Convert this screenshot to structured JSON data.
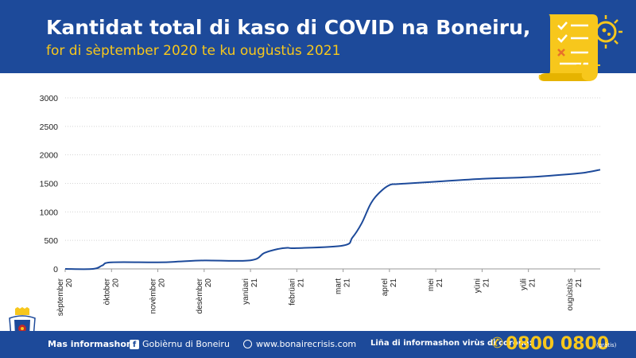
{
  "header": {
    "title": "Kantidat total di kaso di COVID na Boneiru,",
    "subtitle": "for di sèptember 2020 te ku ougùstùs 2021"
  },
  "footer": {
    "more_info": "Mas informashon:",
    "facebook": "Gobièrnu di Boneiru",
    "website": "www.bonairecrisis.com",
    "hotline_label": "Liña di informashon virùs di corona:",
    "hotline_number": "0800 0800",
    "hotline_note": "(grátis)"
  },
  "colors": {
    "header_bg": "#1d4a9a",
    "subtitle": "#f7c71c",
    "line": "#1d4a9a",
    "grid": "#d4d4d4"
  },
  "icons": [
    "document-checklist-icon",
    "virus-icon",
    "coat-of-arms-icon",
    "facebook-icon",
    "globe-icon",
    "phone-icon"
  ],
  "chart_data": {
    "type": "line",
    "title": "Kantidat total di kaso di COVID na Boneiru,",
    "subtitle": "for di sèptember 2020 te ku ougùstùs 2021",
    "xlabel": "",
    "ylabel": "",
    "ylim": [
      0,
      3000
    ],
    "yticks": [
      0,
      500,
      1000,
      1500,
      2000,
      2500,
      3000
    ],
    "grid": true,
    "legend": "none",
    "xtick_labels": [
      "sèptember 20",
      "òktober 20",
      "novèmber 20",
      "desèmber 20",
      "yanüari 21",
      "febrüari 21",
      "mart 21",
      "aprel 21",
      "mei 21",
      "yüni 21",
      "yüli 21",
      "ougùstùs 21"
    ],
    "series": [
      {
        "x": [
          0,
          0.6,
          0.8,
          1.0,
          2.0,
          2.5,
          3.0,
          4.0,
          4.3,
          4.6,
          4.8,
          5.0,
          6.0,
          6.2,
          6.4,
          6.6,
          6.8,
          7.0,
          7.2,
          8.0,
          9.0,
          10.0,
          11.0,
          11.3,
          11.55
        ],
        "y": [
          0,
          0,
          60,
          115,
          115,
          130,
          148,
          150,
          280,
          350,
          370,
          365,
          410,
          550,
          800,
          1150,
          1350,
          1470,
          1490,
          1530,
          1580,
          1610,
          1670,
          1700,
          1740
        ]
      }
    ]
  }
}
